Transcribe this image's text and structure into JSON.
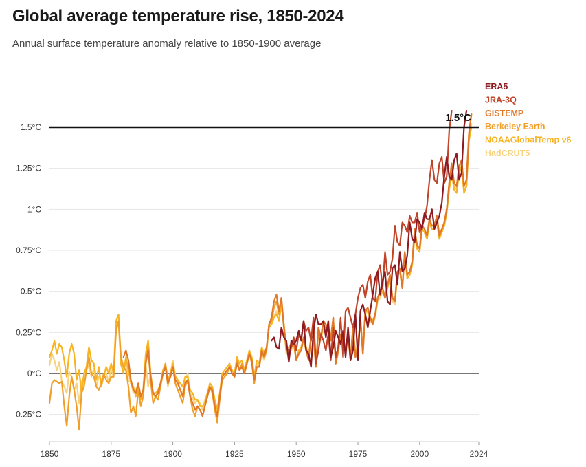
{
  "header": {
    "title": "Global average temperature rise, 1850-2024",
    "subtitle": "Annual surface temperature anomaly relative to 1850-1900 average"
  },
  "chart_data": {
    "type": "line",
    "title": "Global average temperature rise, 1850-2024",
    "subtitle": "Annual surface temperature anomaly relative to 1850-1900 average",
    "xlabel": "",
    "ylabel": "",
    "xlim": [
      1850,
      2024
    ],
    "ylim": [
      -0.37,
      1.62
    ],
    "x_ticks": [
      1850,
      1875,
      1900,
      1925,
      1950,
      1975,
      2000,
      2024
    ],
    "y_ticks": [
      {
        "value": -0.25,
        "label": "-0.25°C"
      },
      {
        "value": 0,
        "label": "0°C"
      },
      {
        "value": 0.25,
        "label": "0.25°C"
      },
      {
        "value": 0.5,
        "label": "0.5°C"
      },
      {
        "value": 0.75,
        "label": "0.75°C"
      },
      {
        "value": 1,
        "label": "1°C"
      },
      {
        "value": 1.25,
        "label": "1.25°C"
      },
      {
        "value": 1.5,
        "label": "1.5°C"
      }
    ],
    "grid": true,
    "threshold": {
      "value": 1.5,
      "label": "1.5°C"
    },
    "legend_position": "top-right",
    "series": [
      {
        "name": "HadCRUT5",
        "color": "#f8d27c",
        "start": 1850,
        "values": [
          0.05,
          0.12,
          0.08,
          0.02,
          0.07,
          -0.05,
          -0.08,
          -0.12,
          0.01,
          -0.02,
          -0.1,
          -0.06,
          -0.18,
          -0.05,
          -0.02,
          0.02,
          0.05,
          -0.02,
          0.03,
          -0.08,
          -0.02,
          -0.04,
          -0.01,
          0.0,
          -0.05,
          0.02,
          -0.02,
          0.3,
          0.3,
          0.05,
          0.02,
          0.06,
          -0.05,
          -0.05,
          -0.12,
          -0.1,
          -0.06,
          -0.14,
          -0.12,
          0.06,
          -0.08,
          0.0,
          -0.12,
          -0.15,
          -0.1,
          -0.08,
          0.02,
          0.04,
          -0.08,
          0.0,
          0.08,
          -0.01,
          -0.04,
          -0.1,
          -0.12,
          -0.04,
          0.0,
          -0.12,
          -0.15,
          -0.18,
          -0.16,
          -0.18,
          -0.22,
          -0.16,
          -0.12,
          -0.08,
          -0.1,
          -0.18,
          -0.24,
          -0.12,
          -0.02,
          0.0,
          0.02,
          0.04,
          0.02,
          0.0,
          0.08,
          0.02,
          0.04,
          0.0,
          0.06,
          0.12,
          0.08,
          -0.04,
          0.06,
          0.04,
          0.12,
          0.08,
          0.14,
          0.3,
          0.3,
          0.35,
          0.38,
          0.32,
          0.42,
          0.28,
          0.12,
          0.12,
          0.14,
          0.18,
          0.08,
          0.12,
          0.14,
          0.2,
          0.14,
          0.1,
          0.2,
          0.2,
          0.04,
          0.26,
          0.2,
          0.28,
          0.26,
          0.26,
          0.2,
          0.32,
          0.06,
          0.12,
          0.22,
          0.18,
          0.14,
          0.22,
          0.08,
          0.26,
          0.1,
          0.16,
          0.32,
          0.12,
          0.36,
          0.38,
          0.32,
          0.3,
          0.34,
          0.44,
          0.46,
          0.5,
          0.46,
          0.52,
          0.58,
          0.44,
          0.42,
          0.6,
          0.62,
          0.52,
          0.74,
          0.58,
          0.6,
          0.66,
          0.84,
          0.76,
          0.74,
          0.88,
          0.86,
          0.82,
          0.92,
          0.88,
          0.88,
          0.94,
          0.82,
          0.86,
          0.9,
          0.98,
          1.12,
          1.24,
          1.14,
          1.12,
          1.24,
          1.28,
          1.12,
          1.14,
          1.42,
          1.52
        ]
      },
      {
        "name": "NOAAGlobalTemp v6",
        "color": "#f7b321",
        "start": 1850,
        "values": [
          0.1,
          0.14,
          0.2,
          0.12,
          0.18,
          0.16,
          0.08,
          -0.02,
          0.12,
          0.18,
          0.12,
          -0.04,
          0.02,
          -0.12,
          0.0,
          0.04,
          0.16,
          0.08,
          0.06,
          -0.04,
          0.04,
          -0.08,
          -0.02,
          0.04,
          0.0,
          0.06,
          0.0,
          0.32,
          0.36,
          0.06,
          0.0,
          0.1,
          0.02,
          -0.06,
          -0.08,
          -0.14,
          -0.08,
          -0.16,
          -0.1,
          0.12,
          0.2,
          0.0,
          -0.12,
          -0.12,
          -0.1,
          -0.06,
          0.02,
          0.06,
          -0.04,
          0.0,
          0.06,
          -0.02,
          -0.04,
          -0.06,
          -0.08,
          -0.02,
          -0.02,
          -0.1,
          -0.12,
          -0.16,
          -0.16,
          -0.2,
          -0.2,
          -0.18,
          -0.12,
          -0.06,
          -0.08,
          -0.16,
          -0.22,
          -0.12,
          0.0,
          0.02,
          0.04,
          0.06,
          0.02,
          0.0,
          0.1,
          0.06,
          0.08,
          0.02,
          0.08,
          0.14,
          0.1,
          -0.02,
          0.08,
          0.06,
          0.16,
          0.12,
          0.16,
          0.28,
          0.3,
          0.34,
          0.36,
          0.32,
          0.42,
          0.3,
          0.14,
          0.14,
          0.16,
          0.18,
          0.08,
          0.14,
          0.16,
          0.22,
          0.16,
          0.1,
          0.22,
          0.22,
          0.06,
          0.26,
          0.22,
          0.3,
          0.28,
          0.26,
          0.22,
          0.32,
          0.08,
          0.14,
          0.24,
          0.2,
          0.16,
          0.24,
          0.1,
          0.28,
          0.12,
          0.18,
          0.32,
          0.14,
          0.38,
          0.38,
          0.34,
          0.32,
          0.36,
          0.46,
          0.48,
          0.5,
          0.46,
          0.52,
          0.58,
          0.46,
          0.44,
          0.6,
          0.62,
          0.52,
          0.72,
          0.58,
          0.6,
          0.66,
          0.84,
          0.76,
          0.74,
          0.88,
          0.86,
          0.82,
          0.92,
          0.88,
          0.88,
          0.92,
          0.82,
          0.86,
          0.9,
          0.98,
          1.12,
          1.22,
          1.12,
          1.1,
          1.22,
          1.26,
          1.1,
          1.14,
          1.42,
          1.5
        ]
      },
      {
        "name": "Berkeley Earth",
        "color": "#f29f29",
        "start": 1850,
        "values": [
          -0.18,
          -0.06,
          -0.04,
          -0.05,
          -0.06,
          -0.05,
          -0.2,
          -0.32,
          -0.14,
          -0.02,
          -0.1,
          -0.2,
          -0.34,
          -0.12,
          -0.08,
          0.02,
          0.1,
          0.0,
          -0.02,
          -0.08,
          -0.1,
          -0.06,
          0.0,
          -0.04,
          -0.06,
          -0.02,
          -0.02,
          0.26,
          0.32,
          0.1,
          0.04,
          0.02,
          -0.08,
          -0.24,
          -0.2,
          -0.26,
          -0.1,
          -0.2,
          -0.14,
          0.06,
          0.16,
          -0.04,
          -0.18,
          -0.14,
          -0.16,
          -0.08,
          0.0,
          0.06,
          -0.06,
          -0.02,
          0.04,
          -0.06,
          -0.1,
          -0.14,
          -0.18,
          -0.08,
          -0.04,
          -0.14,
          -0.22,
          -0.26,
          -0.2,
          -0.22,
          -0.26,
          -0.2,
          -0.14,
          -0.08,
          -0.12,
          -0.22,
          -0.3,
          -0.16,
          -0.04,
          -0.02,
          0.0,
          0.04,
          0.0,
          -0.02,
          0.08,
          0.02,
          0.06,
          0.0,
          0.06,
          0.12,
          0.06,
          -0.06,
          0.04,
          0.04,
          0.14,
          0.1,
          0.14,
          0.3,
          0.32,
          0.4,
          0.44,
          0.36,
          0.46,
          0.3,
          0.16,
          0.16,
          0.18,
          0.2,
          0.08,
          0.12,
          0.14,
          0.22,
          0.16,
          0.1,
          0.22,
          0.22,
          0.06,
          0.28,
          0.22,
          0.32,
          0.3,
          0.26,
          0.22,
          0.34,
          0.06,
          0.14,
          0.24,
          0.2,
          0.14,
          0.24,
          0.08,
          0.28,
          0.1,
          0.16,
          0.34,
          0.12,
          0.38,
          0.4,
          0.34,
          0.32,
          0.36,
          0.46,
          0.5,
          0.52,
          0.46,
          0.54,
          0.6,
          0.46,
          0.44,
          0.62,
          0.64,
          0.52,
          0.74,
          0.6,
          0.62,
          0.68,
          0.86,
          0.78,
          0.76,
          0.9,
          0.88,
          0.84,
          0.94,
          0.9,
          0.9,
          0.96,
          0.84,
          0.88,
          0.92,
          1.0,
          1.16,
          1.26,
          1.16,
          1.14,
          1.26,
          1.3,
          1.14,
          1.18,
          1.46,
          1.58
        ]
      },
      {
        "name": "GISTEMP",
        "color": "#e1782a",
        "start": 1880,
        "values": [
          0.1,
          0.14,
          0.08,
          -0.04,
          -0.1,
          -0.12,
          -0.06,
          -0.14,
          -0.1,
          0.06,
          0.14,
          -0.02,
          -0.12,
          -0.14,
          -0.12,
          -0.06,
          0.0,
          0.04,
          -0.06,
          -0.02,
          0.04,
          -0.04,
          -0.06,
          -0.1,
          -0.14,
          -0.06,
          -0.04,
          -0.14,
          -0.18,
          -0.22,
          -0.2,
          -0.22,
          -0.26,
          -0.2,
          -0.14,
          -0.08,
          -0.1,
          -0.2,
          -0.26,
          -0.14,
          -0.02,
          0.0,
          0.02,
          0.04,
          0.0,
          -0.02,
          0.06,
          0.02,
          0.04,
          0.0,
          0.06,
          0.12,
          0.08,
          -0.04,
          0.04,
          0.04,
          0.14,
          0.1,
          0.16,
          0.3,
          0.34,
          0.44,
          0.48,
          0.38,
          0.46,
          0.28,
          0.16,
          0.14,
          0.16,
          0.2,
          0.08,
          0.12,
          0.14,
          0.22,
          0.14,
          0.08,
          0.22,
          0.22,
          0.04,
          0.28,
          0.22,
          0.32,
          0.3,
          0.26,
          0.2,
          0.34,
          0.06,
          0.14,
          0.24,
          0.2,
          0.14,
          0.24,
          0.08,
          0.28,
          0.1,
          0.16,
          0.34,
          0.12,
          0.38,
          0.4,
          0.34,
          0.3,
          0.36,
          0.46,
          0.5,
          0.52,
          0.46,
          0.54,
          0.6,
          0.46,
          0.44,
          0.62,
          0.64,
          0.52,
          0.74,
          0.6,
          0.62,
          0.68,
          0.88,
          0.78,
          0.76,
          0.9,
          0.88,
          0.84,
          0.94,
          0.9,
          0.9,
          0.96,
          0.84,
          0.88,
          0.92,
          1.0,
          1.16,
          1.28,
          1.16,
          1.14,
          1.26,
          1.3,
          1.14,
          1.18,
          1.46,
          1.58
        ]
      },
      {
        "name": "JRA-3Q",
        "color": "#c04428",
        "start": 1947,
        "values": [
          0.12,
          0.16,
          0.22,
          0.14,
          0.24,
          0.2,
          0.32,
          0.26,
          0.28,
          0.2,
          0.34,
          0.06,
          0.14,
          0.24,
          0.2,
          0.14,
          0.24,
          0.08,
          0.28,
          0.1,
          0.16,
          0.34,
          0.1,
          0.38,
          0.4,
          0.34,
          0.28,
          0.36,
          0.46,
          0.52,
          0.54,
          0.46,
          0.56,
          0.6,
          0.46,
          0.44,
          0.62,
          0.66,
          0.52,
          0.74,
          0.6,
          0.62,
          0.7,
          0.9,
          0.8,
          0.78,
          0.92,
          0.9,
          0.86,
          0.96,
          0.92,
          0.92,
          0.98,
          0.86,
          0.9,
          0.94,
          1.02,
          1.18,
          1.3,
          1.18,
          1.16,
          1.28,
          1.32,
          1.16,
          1.2,
          1.48,
          1.6
        ]
      },
      {
        "name": "ERA5",
        "color": "#8e1b22",
        "start": 1940,
        "values": [
          0.2,
          0.22,
          0.16,
          0.15,
          0.28,
          0.22,
          0.2,
          0.07,
          0.2,
          0.18,
          0.2,
          0.26,
          0.2,
          0.32,
          0.14,
          0.12,
          0.04,
          0.26,
          0.36,
          0.3,
          0.3,
          0.32,
          0.22,
          0.32,
          0.1,
          0.16,
          0.26,
          0.22,
          0.18,
          0.26,
          0.1,
          0.28,
          0.08,
          0.14,
          0.36,
          0.08,
          0.38,
          0.42,
          0.36,
          0.28,
          0.38,
          0.48,
          0.58,
          0.62,
          0.48,
          0.56,
          0.62,
          0.44,
          0.42,
          0.64,
          0.66,
          0.54,
          0.74,
          0.62,
          0.64,
          0.72,
          0.92,
          0.82,
          0.8,
          0.94,
          0.92,
          0.88,
          0.98,
          0.94,
          0.94,
          1.0,
          0.88,
          0.92,
          0.96,
          1.04,
          1.2,
          1.32,
          1.2,
          1.18,
          1.3,
          1.34,
          1.18,
          1.22,
          1.5,
          1.6
        ]
      }
    ]
  }
}
